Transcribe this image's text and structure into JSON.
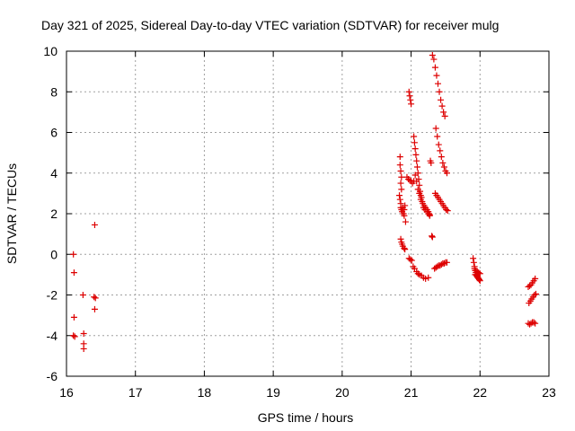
{
  "chart_data": {
    "type": "scatter",
    "title": "Day 321 of 2025, Sidereal Day-to-day VTEC variation (SDTVAR) for receiver mulg",
    "xlabel": "GPS time / hours",
    "ylabel": "SDTVAR / TECUs",
    "xlim": [
      16,
      23
    ],
    "ylim": [
      -6,
      10
    ],
    "xticks": [
      16,
      17,
      18,
      19,
      20,
      21,
      22,
      23
    ],
    "yticks": [
      -6,
      -4,
      -2,
      0,
      2,
      4,
      6,
      8,
      10
    ],
    "grid": true,
    "marker": "+",
    "color": "#dd0000",
    "series": [
      {
        "name": "SDTVAR",
        "points": [
          [
            16.1,
            0.0
          ],
          [
            16.11,
            -0.9
          ],
          [
            16.11,
            -3.1
          ],
          [
            16.1,
            -4.0
          ],
          [
            16.12,
            -4.05
          ],
          [
            16.24,
            -2.0
          ],
          [
            16.25,
            -3.9
          ],
          [
            16.25,
            -4.4
          ],
          [
            16.25,
            -4.65
          ],
          [
            16.4,
            -2.1
          ],
          [
            16.42,
            -2.15
          ],
          [
            16.41,
            -2.7
          ],
          [
            16.41,
            1.45
          ],
          [
            20.84,
            4.8
          ],
          [
            20.84,
            4.4
          ],
          [
            20.85,
            4.1
          ],
          [
            20.86,
            3.8
          ],
          [
            20.85,
            3.5
          ],
          [
            20.86,
            3.2
          ],
          [
            20.83,
            2.9
          ],
          [
            20.84,
            2.7
          ],
          [
            20.85,
            2.5
          ],
          [
            20.85,
            2.3
          ],
          [
            20.86,
            2.2
          ],
          [
            20.88,
            2.3
          ],
          [
            20.87,
            2.1
          ],
          [
            20.89,
            2.0
          ],
          [
            20.9,
            2.2
          ],
          [
            20.91,
            2.4
          ],
          [
            20.9,
            1.9
          ],
          [
            20.92,
            1.6
          ],
          [
            20.85,
            0.75
          ],
          [
            20.86,
            0.6
          ],
          [
            20.87,
            0.5
          ],
          [
            20.88,
            0.4
          ],
          [
            20.9,
            0.3
          ],
          [
            20.91,
            0.25
          ],
          [
            20.97,
            8.0
          ],
          [
            20.98,
            7.8
          ],
          [
            20.99,
            7.6
          ],
          [
            21.0,
            7.4
          ],
          [
            20.94,
            3.8
          ],
          [
            20.96,
            3.7
          ],
          [
            20.98,
            3.65
          ],
          [
            21.0,
            3.6
          ],
          [
            21.02,
            3.5
          ],
          [
            21.04,
            3.6
          ],
          [
            20.97,
            -0.2
          ],
          [
            20.99,
            -0.25
          ],
          [
            21.01,
            -0.3
          ],
          [
            21.03,
            -0.6
          ],
          [
            21.05,
            -0.7
          ],
          [
            21.08,
            -0.85
          ],
          [
            21.1,
            -0.95
          ],
          [
            21.12,
            -1.0
          ],
          [
            21.15,
            -1.05
          ],
          [
            21.18,
            -1.15
          ],
          [
            21.21,
            -1.2
          ],
          [
            21.25,
            -1.15
          ],
          [
            21.04,
            5.8
          ],
          [
            21.05,
            5.5
          ],
          [
            21.06,
            5.2
          ],
          [
            21.07,
            4.9
          ],
          [
            21.08,
            4.6
          ],
          [
            21.09,
            4.3
          ],
          [
            21.1,
            4.0
          ],
          [
            21.11,
            3.7
          ],
          [
            21.12,
            3.4
          ],
          [
            21.13,
            3.1
          ],
          [
            21.14,
            2.9
          ],
          [
            21.15,
            2.8
          ],
          [
            21.06,
            3.9
          ],
          [
            21.08,
            3.6
          ],
          [
            21.1,
            3.2
          ],
          [
            21.12,
            3.0
          ],
          [
            21.14,
            2.7
          ],
          [
            21.17,
            2.5
          ],
          [
            21.19,
            2.4
          ],
          [
            21.21,
            2.3
          ],
          [
            21.23,
            2.2
          ],
          [
            21.25,
            2.1
          ],
          [
            21.26,
            2.0
          ],
          [
            21.27,
            1.9
          ],
          [
            21.16,
            2.6
          ],
          [
            21.18,
            2.3
          ],
          [
            21.2,
            2.2
          ],
          [
            21.23,
            2.1
          ],
          [
            21.25,
            2.0
          ],
          [
            21.27,
            1.95
          ],
          [
            21.28,
            4.6
          ],
          [
            21.29,
            4.5
          ],
          [
            21.3,
            0.9
          ],
          [
            21.31,
            0.85
          ],
          [
            21.31,
            9.8
          ],
          [
            21.33,
            9.6
          ],
          [
            21.35,
            9.2
          ],
          [
            21.37,
            8.8
          ],
          [
            21.39,
            8.4
          ],
          [
            21.41,
            8.0
          ],
          [
            21.43,
            7.6
          ],
          [
            21.45,
            7.3
          ],
          [
            21.47,
            7.0
          ],
          [
            21.49,
            6.8
          ],
          [
            21.36,
            6.2
          ],
          [
            21.38,
            5.8
          ],
          [
            21.4,
            5.4
          ],
          [
            21.42,
            5.1
          ],
          [
            21.44,
            4.8
          ],
          [
            21.46,
            4.5
          ],
          [
            21.48,
            4.3
          ],
          [
            21.5,
            4.1
          ],
          [
            21.52,
            4.0
          ],
          [
            21.35,
            3.0
          ],
          [
            21.37,
            2.9
          ],
          [
            21.39,
            2.8
          ],
          [
            21.41,
            2.7
          ],
          [
            21.43,
            2.6
          ],
          [
            21.45,
            2.5
          ],
          [
            21.47,
            2.4
          ],
          [
            21.49,
            2.3
          ],
          [
            21.51,
            2.2
          ],
          [
            21.53,
            2.15
          ],
          [
            21.34,
            -0.7
          ],
          [
            21.36,
            -0.65
          ],
          [
            21.38,
            -0.6
          ],
          [
            21.4,
            -0.55
          ],
          [
            21.42,
            -0.55
          ],
          [
            21.44,
            -0.5
          ],
          [
            21.46,
            -0.45
          ],
          [
            21.48,
            -0.45
          ],
          [
            21.5,
            -0.4
          ],
          [
            21.52,
            -0.4
          ],
          [
            21.9,
            -0.2
          ],
          [
            21.91,
            -0.4
          ],
          [
            21.92,
            -0.6
          ],
          [
            21.93,
            -0.8
          ],
          [
            21.94,
            -0.9
          ],
          [
            21.95,
            -1.0
          ],
          [
            21.96,
            -1.1
          ],
          [
            21.97,
            -1.15
          ],
          [
            21.98,
            -1.2
          ],
          [
            21.99,
            -1.25
          ],
          [
            22.0,
            -1.3
          ],
          [
            21.92,
            -0.7
          ],
          [
            21.94,
            -0.8
          ],
          [
            21.96,
            -0.85
          ],
          [
            21.98,
            -0.9
          ],
          [
            22.0,
            -0.95
          ],
          [
            21.93,
            -1.0
          ],
          [
            21.95,
            -1.05
          ],
          [
            22.7,
            -1.6
          ],
          [
            22.72,
            -1.55
          ],
          [
            22.74,
            -1.5
          ],
          [
            22.76,
            -1.4
          ],
          [
            22.78,
            -1.3
          ],
          [
            22.8,
            -1.2
          ],
          [
            22.71,
            -2.4
          ],
          [
            22.73,
            -2.3
          ],
          [
            22.75,
            -2.2
          ],
          [
            22.77,
            -2.1
          ],
          [
            22.79,
            -2.0
          ],
          [
            22.81,
            -1.95
          ],
          [
            22.7,
            -3.4
          ],
          [
            22.72,
            -3.45
          ],
          [
            22.74,
            -3.4
          ],
          [
            22.76,
            -3.35
          ],
          [
            22.78,
            -3.35
          ],
          [
            22.8,
            -3.4
          ]
        ]
      }
    ]
  }
}
